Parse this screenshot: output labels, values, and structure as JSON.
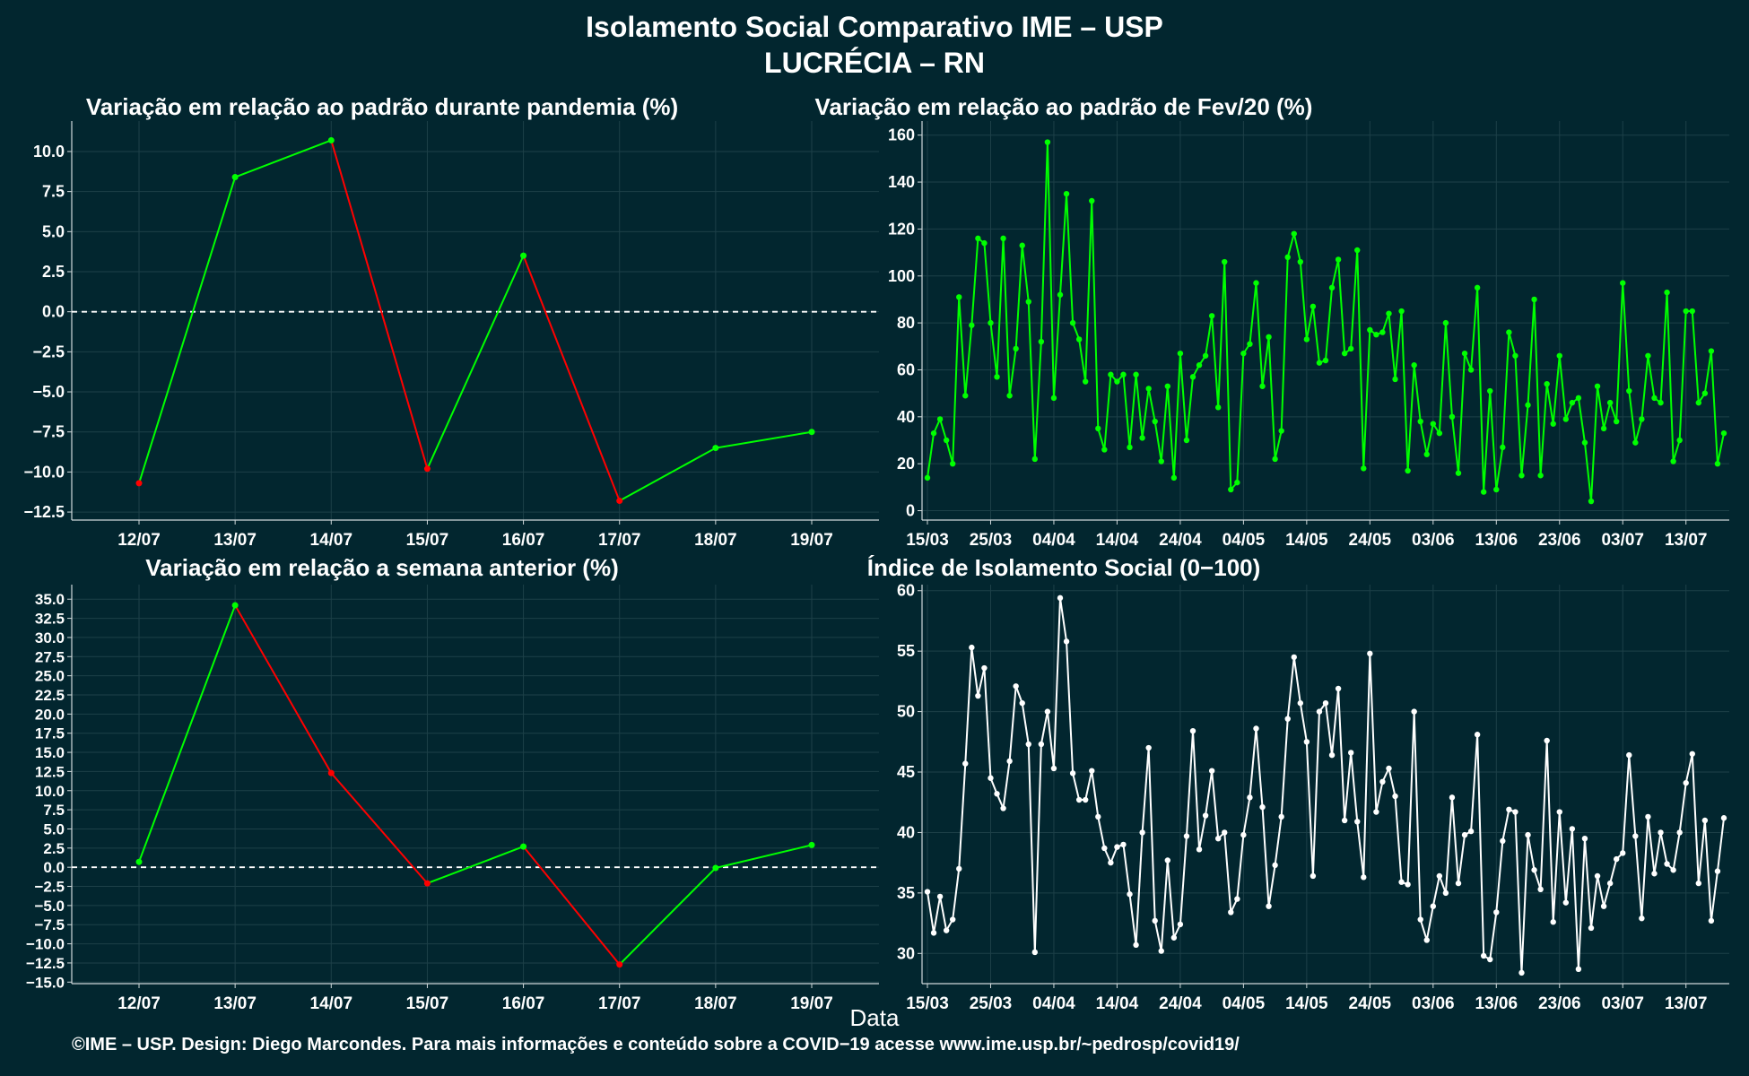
{
  "header": {
    "title_line1": "Isolamento Social Comparativo IME – USP",
    "title_line2": "LUCRÉCIA – RN"
  },
  "footer": "©IME – USP. Design: Diego Marcondes. Para mais informações e conteúdo sobre a COVID−19 acesse www.ime.usp.br/~pedrosp/covid19/",
  "x_axis_label": "Data",
  "colors": {
    "background": "#02262f",
    "up": "#00ff00",
    "down": "#ff0000",
    "index": "#ffffff",
    "grid": "#1d4048"
  },
  "chart_data": [
    {
      "id": "pandemia",
      "type": "line",
      "title": "Variação em relação ao padrão durante pandemia (%)",
      "categories": [
        "12/07",
        "13/07",
        "14/07",
        "15/07",
        "16/07",
        "17/07",
        "18/07",
        "19/07"
      ],
      "values": [
        -10.7,
        8.4,
        10.7,
        -9.8,
        3.5,
        -11.8,
        -8.5,
        -7.5
      ],
      "yticks": [
        10.0,
        7.5,
        5.0,
        2.5,
        0.0,
        -2.5,
        -5.0,
        -7.5,
        -10.0,
        -12.5
      ],
      "ylim": [
        -13,
        11.9
      ],
      "reference_line": 0,
      "coloring": "green-up red-down"
    },
    {
      "id": "fev20",
      "type": "line",
      "title": "Variação em relação ao padrão de Fev/20 (%)",
      "x_tick_labels": [
        "15/03",
        "25/03",
        "04/04",
        "14/04",
        "24/04",
        "04/05",
        "14/05",
        "24/05",
        "03/06",
        "13/06",
        "23/06",
        "03/07",
        "13/07"
      ],
      "x_start_label": "15/03",
      "values": [
        14,
        33,
        39,
        30,
        20,
        91,
        49,
        79,
        116,
        114,
        80,
        57,
        116,
        49,
        69,
        113,
        89,
        22,
        72,
        157,
        48,
        92,
        135,
        80,
        73,
        55,
        132,
        35,
        26,
        58,
        55,
        58,
        27,
        58,
        31,
        52,
        38,
        21,
        53,
        14,
        67,
        30,
        57,
        62,
        66,
        83,
        44,
        106,
        9,
        12,
        67,
        71,
        97,
        53,
        74,
        22,
        34,
        108,
        118,
        106,
        73,
        87,
        63,
        64,
        95,
        107,
        67,
        69,
        111,
        18,
        77,
        75,
        76,
        84,
        56,
        85,
        17,
        62,
        38,
        24,
        37,
        33,
        80,
        40,
        16,
        67,
        60,
        95,
        8,
        51,
        9,
        27,
        76,
        66,
        15,
        45,
        90,
        15,
        54,
        37,
        66,
        39,
        46,
        48,
        29,
        4,
        53,
        35,
        46,
        38,
        97,
        51,
        29,
        39,
        66,
        48,
        46,
        93,
        21,
        30,
        85,
        85,
        46,
        50,
        68,
        20,
        33
      ],
      "yticks": [
        0,
        20,
        40,
        60,
        80,
        100,
        120,
        140,
        160
      ],
      "ylim": [
        -4,
        166
      ]
    },
    {
      "id": "semana",
      "type": "line",
      "title": "Variação em relação a semana anterior (%)",
      "categories": [
        "12/07",
        "13/07",
        "14/07",
        "15/07",
        "16/07",
        "17/07",
        "18/07",
        "19/07"
      ],
      "values": [
        0.7,
        34.2,
        12.3,
        -2.1,
        2.7,
        -12.7,
        -0.1,
        2.9
      ],
      "yticks": [
        35.0,
        32.5,
        30.0,
        27.5,
        25.0,
        22.5,
        20.0,
        17.5,
        15.0,
        12.5,
        10.0,
        7.5,
        5.0,
        2.5,
        0.0,
        -2.5,
        -5.0,
        -7.5,
        -10.0,
        -12.5,
        -15.0
      ],
      "ylim": [
        -15.2,
        36.9
      ],
      "reference_line": 0,
      "coloring": "green-up red-down"
    },
    {
      "id": "indice",
      "type": "line",
      "title": "Índice de Isolamento Social (0−100)",
      "x_tick_labels": [
        "15/03",
        "25/03",
        "04/04",
        "14/04",
        "24/04",
        "04/05",
        "14/05",
        "24/05",
        "03/06",
        "13/06",
        "23/06",
        "03/07",
        "13/07"
      ],
      "x_start_label": "15/03",
      "values": [
        35.1,
        31.7,
        34.7,
        31.9,
        32.8,
        37.0,
        45.7,
        55.3,
        51.3,
        53.6,
        44.5,
        43.2,
        42.0,
        45.9,
        52.1,
        50.7,
        47.3,
        30.1,
        47.3,
        50.0,
        45.3,
        59.4,
        55.8,
        44.9,
        42.7,
        42.7,
        45.1,
        41.3,
        38.7,
        37.5,
        38.8,
        39.0,
        34.9,
        30.7,
        40.0,
        47.0,
        32.7,
        30.2,
        37.7,
        31.3,
        32.4,
        39.7,
        48.4,
        38.6,
        41.4,
        45.1,
        39.5,
        40.0,
        33.4,
        34.5,
        39.8,
        42.9,
        48.6,
        42.1,
        33.9,
        37.3,
        41.3,
        49.4,
        54.5,
        50.7,
        47.5,
        36.4,
        50.0,
        50.7,
        46.4,
        51.9,
        41.0,
        46.6,
        40.9,
        36.3,
        54.8,
        41.7,
        44.2,
        45.3,
        43.0,
        35.9,
        35.7,
        50.0,
        32.8,
        31.1,
        33.9,
        36.4,
        35.0,
        42.9,
        35.8,
        39.8,
        40.1,
        48.1,
        29.8,
        29.5,
        33.4,
        39.3,
        41.9,
        41.7,
        28.4,
        39.8,
        36.9,
        35.3,
        47.6,
        32.6,
        41.7,
        34.2,
        40.3,
        28.7,
        39.5,
        32.1,
        36.4,
        33.9,
        35.8,
        37.8,
        38.3,
        46.4,
        39.7,
        32.9,
        41.3,
        36.6,
        40.0,
        37.4,
        36.9,
        40.0,
        44.1,
        46.5,
        35.8,
        41.0,
        32.7,
        36.8,
        41.2
      ],
      "yticks": [
        30,
        35,
        40,
        45,
        50,
        55,
        60
      ],
      "ylim": [
        27.5,
        60.5
      ]
    }
  ]
}
